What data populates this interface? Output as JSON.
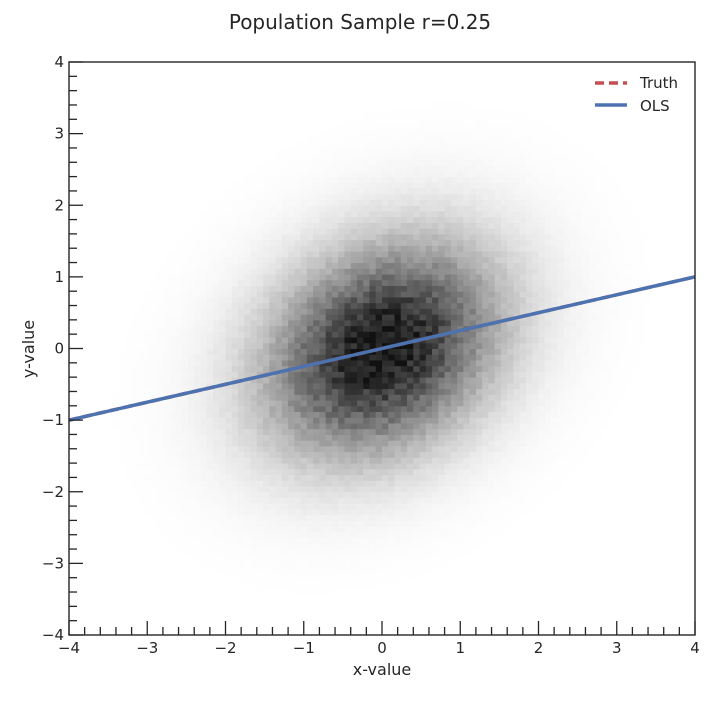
{
  "chart_data": {
    "type": "heatmap",
    "title": "Population Sample r=0.25",
    "xlabel": "x-value",
    "ylabel": "y-value",
    "xlim": [
      -4,
      4
    ],
    "ylim": [
      -4,
      4
    ],
    "x_ticks": [
      -4,
      -3,
      -2,
      -1,
      0,
      1,
      2,
      3,
      4
    ],
    "y_ticks": [
      -4,
      -3,
      -2,
      -1,
      0,
      1,
      2,
      3,
      4
    ],
    "x_tick_labels": [
      "−4",
      "−3",
      "−2",
      "−1",
      "0",
      "1",
      "2",
      "3",
      "4"
    ],
    "y_tick_labels": [
      "−4",
      "−3",
      "−2",
      "−1",
      "0",
      "1",
      "2",
      "3",
      "4"
    ],
    "minor_tick_step": 0.2,
    "grid": false,
    "density": {
      "colormap": "Greys",
      "correlation": 0.25,
      "bins": 100
    },
    "lines": [
      {
        "name": "Truth",
        "x": [
          -4,
          4
        ],
        "y": [
          -1,
          1
        ],
        "style": "dashed",
        "color": "#c44e52"
      },
      {
        "name": "OLS",
        "x": [
          -4,
          4
        ],
        "y": [
          -1,
          1
        ],
        "style": "solid",
        "color": "#4c72b0"
      }
    ],
    "legend": {
      "position": "top-right",
      "entries": [
        "Truth",
        "OLS"
      ]
    }
  }
}
